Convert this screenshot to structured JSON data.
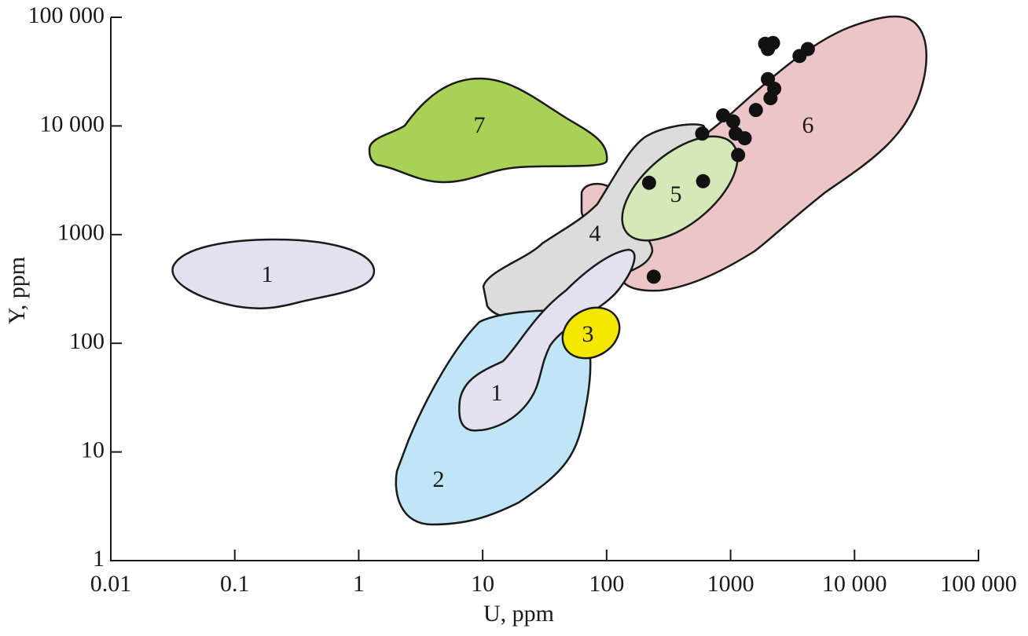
{
  "chart_data": {
    "type": "scatter",
    "xlabel": "U, ppm",
    "ylabel": "Y, ppm",
    "log_x": true,
    "log_y": true,
    "xlim": [
      0.01,
      100000
    ],
    "ylim": [
      1,
      100000
    ],
    "xticks": [
      0.01,
      0.1,
      1,
      10,
      100,
      1000,
      {
        "value": 10000,
        "label": "10 000"
      },
      {
        "value": 100000,
        "label": "100 000"
      }
    ],
    "yticks": [
      1,
      10,
      100,
      1000,
      {
        "value": 10000,
        "label": "10 000"
      },
      {
        "value": 100000,
        "label": "100 000"
      }
    ],
    "annotations": [
      "1",
      "7",
      "4",
      "5",
      "6",
      "3",
      "1",
      "2"
    ],
    "series": [
      {
        "color": "#111111",
        "x": [
          1900,
          2200,
          2000,
          4200,
          3600,
          2000,
          2250,
          2100,
          1600,
          870,
          1050,
          1100,
          1300,
          590,
          1150,
          220,
          600,
          240
        ],
        "values": [
          57000,
          58000,
          51000,
          51000,
          44000,
          27000,
          22000,
          18000,
          14000,
          12500,
          11000,
          8500,
          7700,
          8500,
          5400,
          3000,
          3100,
          410
        ]
      }
    ]
  }
}
